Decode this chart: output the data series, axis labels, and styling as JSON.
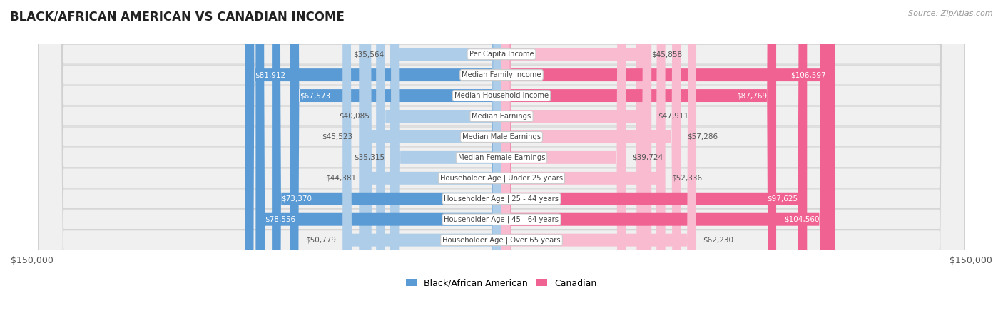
{
  "title": "BLACK/AFRICAN AMERICAN VS CANADIAN INCOME",
  "source": "Source: ZipAtlas.com",
  "categories": [
    "Per Capita Income",
    "Median Family Income",
    "Median Household Income",
    "Median Earnings",
    "Median Male Earnings",
    "Median Female Earnings",
    "Householder Age | Under 25 years",
    "Householder Age | 25 - 44 years",
    "Householder Age | 45 - 64 years",
    "Householder Age | Over 65 years"
  ],
  "black_values": [
    35564,
    81912,
    67573,
    40085,
    45523,
    35315,
    44381,
    73370,
    78556,
    50779
  ],
  "canadian_values": [
    45858,
    106597,
    87769,
    47911,
    57286,
    39724,
    52336,
    97625,
    104560,
    62230
  ],
  "black_labels": [
    "$35,564",
    "$81,912",
    "$67,573",
    "$40,085",
    "$45,523",
    "$35,315",
    "$44,381",
    "$73,370",
    "$78,556",
    "$50,779"
  ],
  "canadian_labels": [
    "$45,858",
    "$106,597",
    "$87,769",
    "$47,911",
    "$57,286",
    "$39,724",
    "$52,336",
    "$97,625",
    "$104,560",
    "$62,230"
  ],
  "max_value": 150000,
  "black_color_dark": "#5b9bd5",
  "black_color_light": "#aecde8",
  "canadian_color_dark": "#f06292",
  "canadian_color_light": "#f8bbd0",
  "bg_row_color": "#f0f0f0",
  "bg_row_alt": "#e8e8e8",
  "black_dark_threshold": 60000,
  "canadian_dark_threshold": 80000,
  "label_inside_black_threshold": 60000,
  "label_inside_canadian_threshold": 80000
}
